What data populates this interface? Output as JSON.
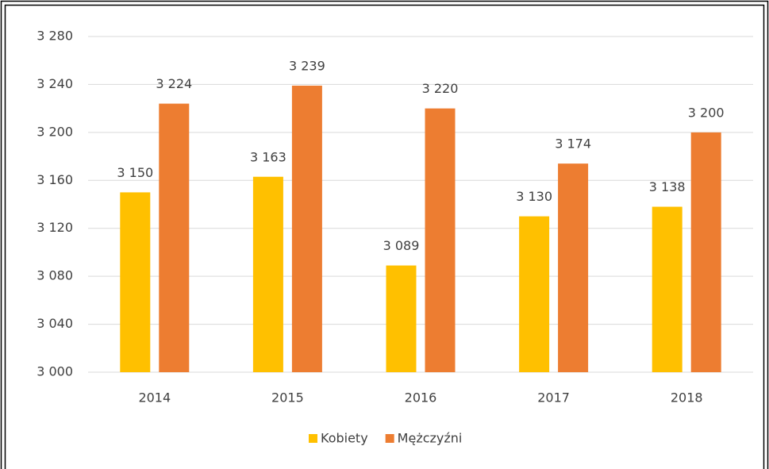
{
  "chart_data": {
    "type": "bar",
    "categories": [
      "2014",
      "2015",
      "2016",
      "2017",
      "2018"
    ],
    "series": [
      {
        "name": "Kobiety",
        "color": "#ffc000",
        "values": [
          3150,
          3163,
          3089,
          3130,
          3138
        ],
        "value_labels": [
          "3 150",
          "3 163",
          "3 089",
          "3 130",
          "3 138"
        ]
      },
      {
        "name": "Mężczyźni",
        "color": "#ed7d31",
        "values": [
          3224,
          3239,
          3220,
          3174,
          3200
        ],
        "value_labels": [
          "3 224",
          "3 239",
          "3 220",
          "3 174",
          "3 200"
        ]
      }
    ],
    "ylim": [
      3000,
      3280
    ],
    "yticks": [
      {
        "value": 3000,
        "label": "3 000"
      },
      {
        "value": 3040,
        "label": "3 040"
      },
      {
        "value": 3080,
        "label": "3 080"
      },
      {
        "value": 3120,
        "label": "3 120"
      },
      {
        "value": 3160,
        "label": "3 160"
      },
      {
        "value": 3200,
        "label": "3 200"
      },
      {
        "value": 3240,
        "label": "3 240"
      },
      {
        "value": 3280,
        "label": "3 280"
      }
    ],
    "grid": true,
    "legend": "bottom"
  }
}
